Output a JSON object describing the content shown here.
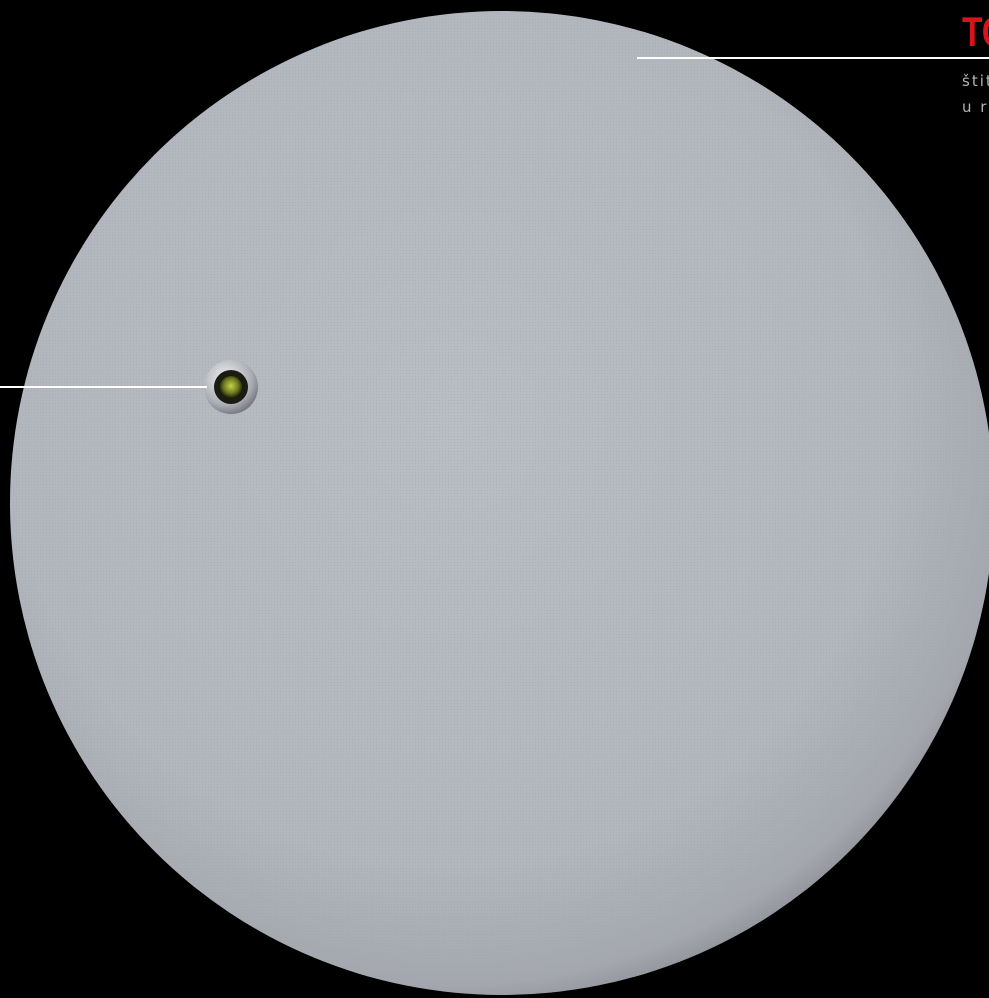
{
  "callout": {
    "title": "TC",
    "lines": [
      "štit",
      "u r"
    ]
  }
}
